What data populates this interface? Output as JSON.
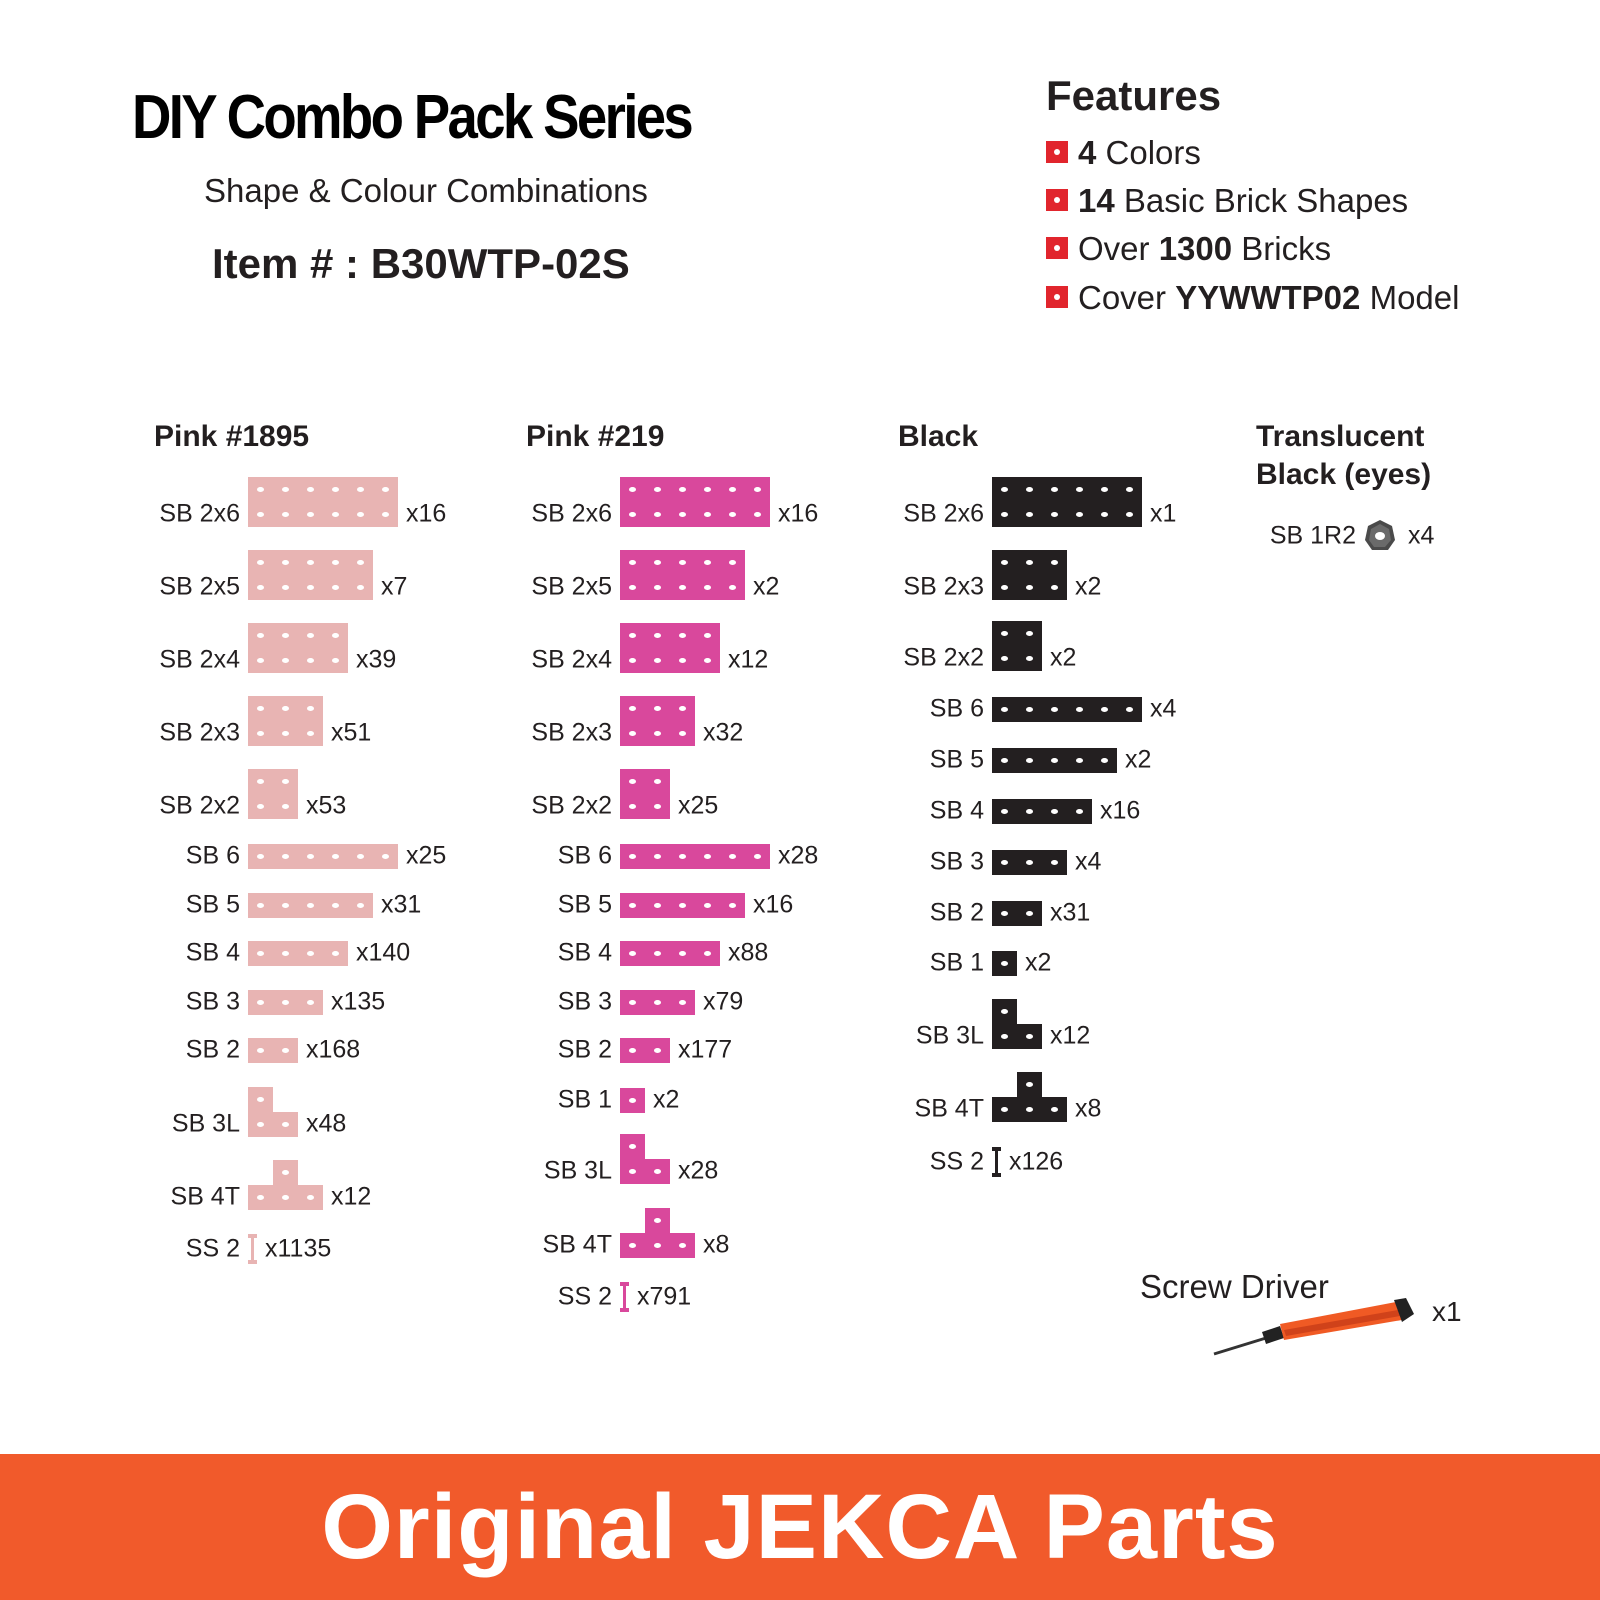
{
  "header": {
    "title": "DIY Combo Pack Series",
    "subtitle": "Shape & Colour Combinations",
    "item": "Item # : B30WTP-02S"
  },
  "features": {
    "heading": "Features",
    "items": [
      {
        "bold": "4",
        "rest": " Colors"
      },
      {
        "bold": "14",
        "rest": " Basic Brick Shapes"
      },
      {
        "pre": "Over ",
        "bold": "1300",
        "rest": " Bricks"
      },
      {
        "pre": "Cover ",
        "bold": "YYWWTP02",
        "rest": " Model"
      }
    ]
  },
  "colors": {
    "pink1895": "#e8b4b3",
    "pink219": "#d9489c",
    "black": "#231f20",
    "bullet": "#e1252d",
    "footer": "#f15a2b"
  },
  "columns": [
    {
      "heading": "Pink #1895",
      "parts": [
        {
          "label": "SB 2x6",
          "qty": "x16"
        },
        {
          "label": "SB 2x5",
          "qty": "x7"
        },
        {
          "label": "SB 2x4",
          "qty": "x39"
        },
        {
          "label": "SB 2x3",
          "qty": "x51"
        },
        {
          "label": "SB 2x2",
          "qty": "x53"
        },
        {
          "label": "SB 6",
          "qty": "x25"
        },
        {
          "label": "SB 5",
          "qty": "x31"
        },
        {
          "label": "SB 4",
          "qty": "x140"
        },
        {
          "label": "SB 3",
          "qty": "x135"
        },
        {
          "label": "SB 2",
          "qty": "x168"
        },
        {
          "label": "SB 3L",
          "qty": "x48"
        },
        {
          "label": "SB 4T",
          "qty": "x12"
        },
        {
          "label": "SS 2",
          "qty": "x1135"
        }
      ]
    },
    {
      "heading": "Pink #219",
      "parts": [
        {
          "label": "SB 2x6",
          "qty": "x16"
        },
        {
          "label": "SB 2x5",
          "qty": "x2"
        },
        {
          "label": "SB 2x4",
          "qty": "x12"
        },
        {
          "label": "SB 2x3",
          "qty": "x32"
        },
        {
          "label": "SB 2x2",
          "qty": "x25"
        },
        {
          "label": "SB 6",
          "qty": "x28"
        },
        {
          "label": "SB 5",
          "qty": "x16"
        },
        {
          "label": "SB 4",
          "qty": "x88"
        },
        {
          "label": "SB 3",
          "qty": "x79"
        },
        {
          "label": "SB 2",
          "qty": "x177"
        },
        {
          "label": "SB 1",
          "qty": "x2"
        },
        {
          "label": "SB 3L",
          "qty": "x28"
        },
        {
          "label": "SB 4T",
          "qty": "x8"
        },
        {
          "label": "SS 2",
          "qty": "x791"
        }
      ]
    },
    {
      "heading": "Black",
      "parts": [
        {
          "label": "SB 2x6",
          "qty": "x1"
        },
        {
          "label": "SB 2x3",
          "qty": "x2"
        },
        {
          "label": "SB 2x2",
          "qty": "x2"
        },
        {
          "label": "SB 6",
          "qty": "x4"
        },
        {
          "label": "SB 5",
          "qty": "x2"
        },
        {
          "label": "SB 4",
          "qty": "x16"
        },
        {
          "label": "SB 3",
          "qty": "x4"
        },
        {
          "label": "SB 2",
          "qty": "x31"
        },
        {
          "label": "SB 1",
          "qty": "x2"
        },
        {
          "label": "SB 3L",
          "qty": "x12"
        },
        {
          "label": "SB 4T",
          "qty": "x8"
        },
        {
          "label": "SS 2",
          "qty": "x126"
        }
      ]
    },
    {
      "heading_line1": "Translucent",
      "heading_line2": "Black (eyes)",
      "parts": [
        {
          "label": "SB 1R2",
          "qty": "x4"
        }
      ]
    }
  ],
  "tool": {
    "label": "Screw Driver",
    "qty": "x1"
  },
  "footer": {
    "text": "Original JEKCA Parts"
  }
}
